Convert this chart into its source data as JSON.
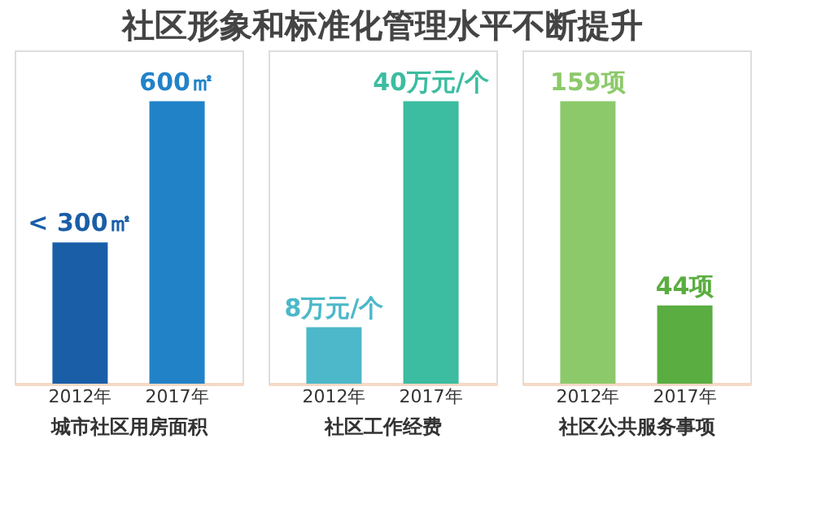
{
  "chart_data": [
    {
      "type": "bar",
      "title": "社区形象和标准化管理水平不断提升",
      "xlabel": "城市社区用房面积",
      "categories": [
        "2012年",
        "2017年"
      ],
      "values": [
        300,
        600
      ],
      "colors": [
        "#1a5ea8",
        "#2182c8"
      ],
      "value_labels": [
        "< 300㎡",
        "600㎡"
      ]
    },
    {
      "type": "bar",
      "xlabel": "社区工作经费",
      "categories": [
        "2012年",
        "2017年"
      ],
      "values": [
        8,
        40
      ],
      "colors": [
        "#4cb8c9",
        "#3cbca0"
      ],
      "value_labels": [
        "8万元/个",
        "40万元/个"
      ]
    },
    {
      "type": "bar",
      "xlabel": "社区公共服务事项",
      "categories": [
        "2012年",
        "2017年"
      ],
      "values": [
        159,
        44
      ],
      "colors": [
        "#8cc96a",
        "#5aad40"
      ],
      "value_labels": [
        "159项",
        "44项"
      ]
    }
  ]
}
